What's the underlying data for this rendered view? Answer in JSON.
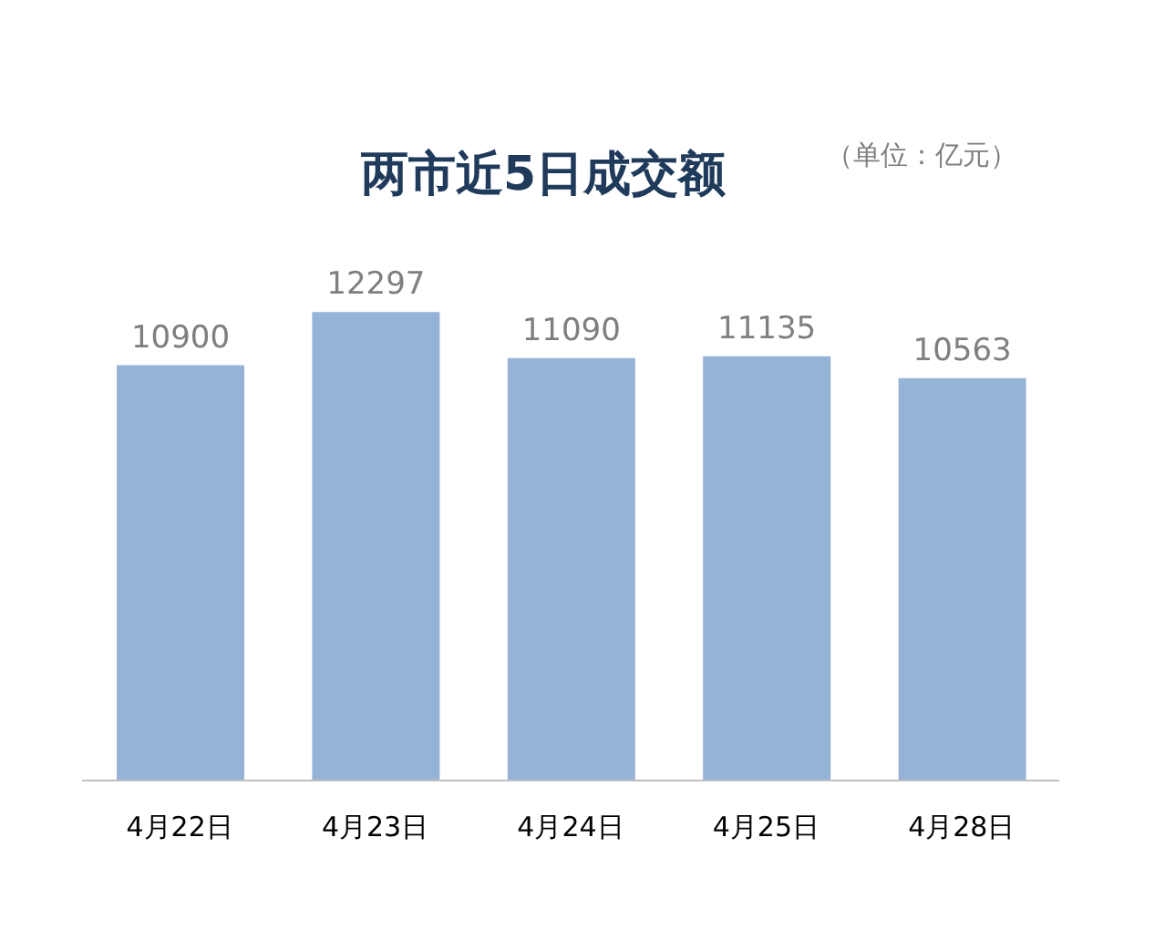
{
  "chart_data": {
    "type": "bar",
    "title": "两市近5日成交额",
    "subtitle": "（单位：亿元）",
    "categories": [
      "4月22日",
      "4月23日",
      "4月24日",
      "4月25日",
      "4月28日"
    ],
    "values": [
      10900,
      12297,
      11090,
      11135,
      10563
    ],
    "color": "#95b3d7",
    "data_labels": true
  }
}
